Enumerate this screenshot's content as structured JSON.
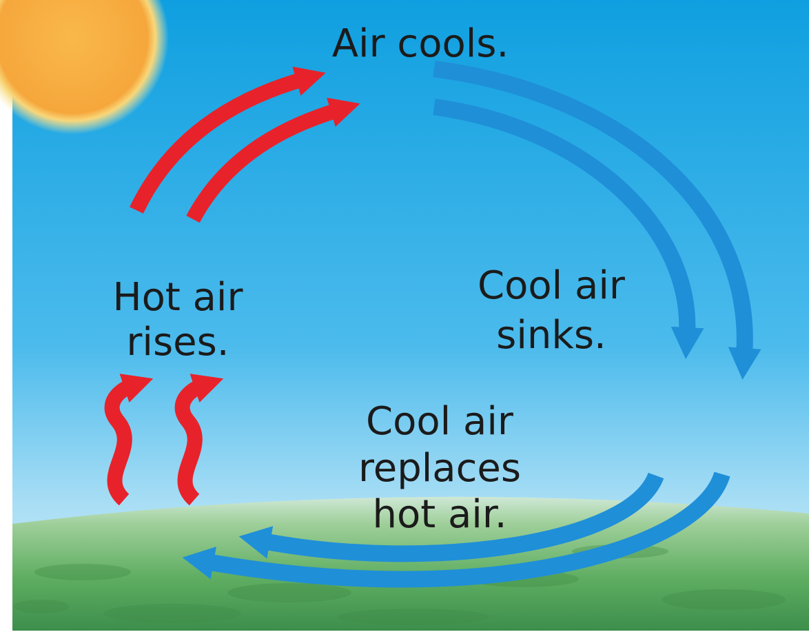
{
  "labels": {
    "air_cools": [
      "Air cools."
    ],
    "hot_air_rises": [
      "Hot air",
      "rises."
    ],
    "cool_air_sinks": [
      "Cool air",
      "sinks."
    ],
    "cool_air_replaces": [
      "Cool air",
      "replaces",
      "hot air."
    ]
  }
}
